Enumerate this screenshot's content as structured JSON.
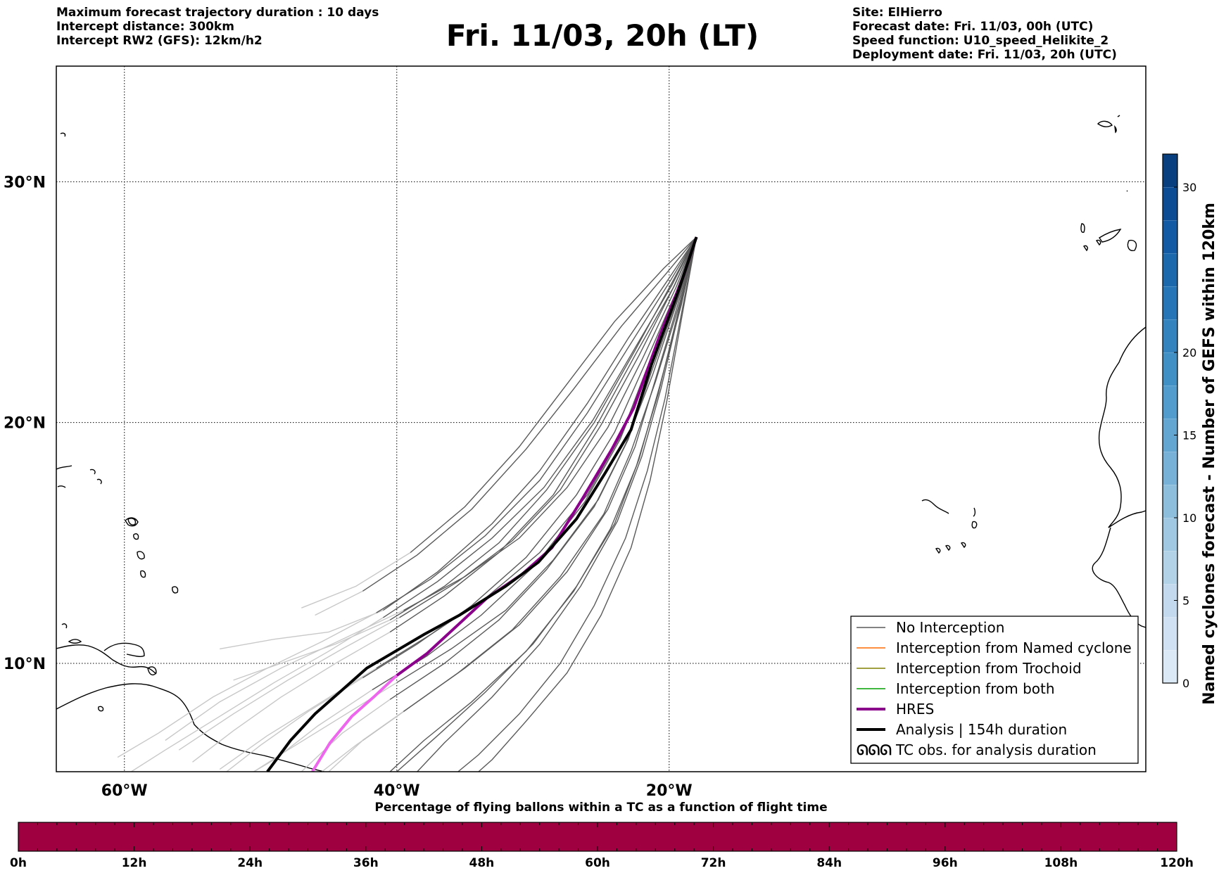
{
  "header": {
    "left": [
      "Maximum forecast trajectory duration : 10 days",
      "Intercept distance: 300km",
      "Intercept RW2 (GFS):  12km/h2"
    ],
    "title": "Fri. 11/03, 20h (LT)",
    "right": [
      "Site: ElHierro",
      "Forecast date: Fri. 11/03, 00h (UTC)",
      "Speed function: U10_speed_Helikite_2",
      "Deployment date: Fri. 11/03, 20h (UTC)"
    ]
  },
  "map": {
    "lon_range": [
      -65,
      15
    ],
    "lat_range": [
      5.5,
      34.8
    ],
    "lon_ticks": [
      {
        "value": -60,
        "label": "60°W"
      },
      {
        "value": -40,
        "label": "40°W"
      },
      {
        "value": -20,
        "label": "20°W"
      }
    ],
    "lat_ticks": [
      {
        "value": 30,
        "label": "30°N"
      },
      {
        "value": 20,
        "label": "20°N"
      },
      {
        "value": 10,
        "label": "10°N"
      }
    ],
    "grid": "dotted",
    "launch_site": {
      "name": "ElHierro",
      "lon": -18.0,
      "lat": 27.7
    },
    "colors": {
      "no_interception": "#5a5a5a",
      "late_segment": "#c8c8c8",
      "named_cyclone": "#ff6a00",
      "trochoid": "#808000",
      "both": "#00a000",
      "hres": "#8b008b",
      "hres_late": "#ee66ee",
      "analysis": "#000000"
    }
  },
  "trajectories": {
    "analysis": [
      [
        -18.0,
        27.7
      ],
      [
        -19.3,
        25.5
      ],
      [
        -21.3,
        22.4
      ],
      [
        -22.8,
        19.7
      ],
      [
        -24.7,
        17.9
      ],
      [
        -26.8,
        16.0
      ],
      [
        -29.6,
        14.2
      ],
      [
        -32.0,
        13.2
      ],
      [
        -35.4,
        12.0
      ],
      [
        -38.0,
        11.2
      ],
      [
        -40.1,
        10.5
      ],
      [
        -42.2,
        9.8
      ],
      [
        -44.0,
        8.9
      ],
      [
        -46.0,
        7.9
      ],
      [
        -47.8,
        6.8
      ],
      [
        -49.5,
        5.5
      ]
    ],
    "hres": [
      [
        -18.0,
        27.7
      ],
      [
        -19.0,
        26.0
      ],
      [
        -20.7,
        23.6
      ],
      [
        -22.6,
        20.6
      ],
      [
        -24.2,
        18.9
      ],
      [
        -26.3,
        16.9
      ],
      [
        -28.6,
        14.8
      ],
      [
        -30.8,
        13.7
      ],
      [
        -33.4,
        12.7
      ],
      [
        -35.5,
        11.6
      ],
      [
        -37.8,
        10.4
      ],
      [
        -40.0,
        9.5
      ],
      [
        -41.7,
        8.6
      ],
      [
        -43.3,
        7.8
      ],
      [
        -44.9,
        6.7
      ],
      [
        -46.2,
        5.5
      ]
    ],
    "ensemble": [
      [
        [
          -18.0,
          27.7
        ],
        [
          -20.0,
          26.0
        ],
        [
          -23.0,
          23.5
        ],
        [
          -26.0,
          20.8
        ],
        [
          -29.5,
          18.0
        ],
        [
          -33.0,
          15.8
        ],
        [
          -37.0,
          13.8
        ],
        [
          -41.0,
          12.2
        ],
        [
          -45.0,
          11.3
        ],
        [
          -49.0,
          11.0
        ],
        [
          -53.0,
          10.6
        ]
      ],
      [
        [
          -18.0,
          27.7
        ],
        [
          -19.8,
          25.8
        ],
        [
          -22.5,
          23.0
        ],
        [
          -25.5,
          20.0
        ],
        [
          -29.0,
          17.2
        ],
        [
          -32.5,
          15.0
        ],
        [
          -36.5,
          13.2
        ],
        [
          -40.5,
          11.8
        ],
        [
          -44.5,
          10.8
        ],
        [
          -48.0,
          10.1
        ],
        [
          -52.0,
          9.3
        ]
      ],
      [
        [
          -18.0,
          27.7
        ],
        [
          -19.5,
          25.6
        ],
        [
          -22.0,
          22.6
        ],
        [
          -24.5,
          19.8
        ],
        [
          -27.5,
          17.3
        ],
        [
          -31.0,
          15.2
        ],
        [
          -35.0,
          13.6
        ],
        [
          -39.5,
          12.2
        ],
        [
          -44.0,
          11.0
        ],
        [
          -48.5,
          9.8
        ],
        [
          -53.0,
          8.4
        ],
        [
          -57.0,
          6.8
        ]
      ],
      [
        [
          -18.0,
          27.7
        ],
        [
          -19.6,
          25.7
        ],
        [
          -22.2,
          22.8
        ],
        [
          -25.0,
          19.9
        ],
        [
          -28.0,
          17.2
        ],
        [
          -31.5,
          15.1
        ],
        [
          -35.5,
          13.4
        ],
        [
          -39.8,
          11.9
        ],
        [
          -44.0,
          10.6
        ],
        [
          -48.0,
          9.3
        ],
        [
          -52.0,
          7.9
        ],
        [
          -56.0,
          6.4
        ]
      ],
      [
        [
          -18.0,
          27.7
        ],
        [
          -19.4,
          25.5
        ],
        [
          -21.6,
          22.3
        ],
        [
          -23.5,
          19.5
        ],
        [
          -26.0,
          17.0
        ],
        [
          -29.5,
          14.6
        ],
        [
          -33.5,
          12.7
        ],
        [
          -37.5,
          11.2
        ],
        [
          -41.5,
          9.8
        ],
        [
          -45.5,
          8.4
        ],
        [
          -49.5,
          7.0
        ],
        [
          -53.0,
          5.6
        ]
      ],
      [
        [
          -18.0,
          27.7
        ],
        [
          -19.3,
          25.3
        ],
        [
          -21.3,
          22.1
        ],
        [
          -23.0,
          19.3
        ],
        [
          -25.2,
          16.8
        ],
        [
          -28.5,
          14.3
        ],
        [
          -32.0,
          12.2
        ],
        [
          -36.0,
          10.6
        ],
        [
          -40.0,
          9.2
        ],
        [
          -44.0,
          7.8
        ],
        [
          -48.0,
          6.4
        ],
        [
          -50.5,
          5.5
        ]
      ],
      [
        [
          -18.0,
          27.7
        ],
        [
          -19.2,
          25.2
        ],
        [
          -21.0,
          21.8
        ],
        [
          -22.5,
          19.0
        ],
        [
          -24.5,
          16.4
        ],
        [
          -27.5,
          13.8
        ],
        [
          -31.0,
          11.6
        ],
        [
          -35.0,
          9.8
        ],
        [
          -39.0,
          8.2
        ],
        [
          -42.5,
          6.8
        ],
        [
          -45.0,
          5.5
        ]
      ],
      [
        [
          -18.0,
          27.7
        ],
        [
          -19.1,
          25.0
        ],
        [
          -20.6,
          21.4
        ],
        [
          -22.0,
          18.6
        ],
        [
          -23.8,
          15.9
        ],
        [
          -26.5,
          13.2
        ],
        [
          -29.5,
          10.8
        ],
        [
          -33.0,
          8.6
        ],
        [
          -36.5,
          6.7
        ],
        [
          -38.5,
          5.5
        ]
      ],
      [
        [
          -18.0,
          27.7
        ],
        [
          -19.0,
          24.8
        ],
        [
          -20.3,
          21.0
        ],
        [
          -21.6,
          18.0
        ],
        [
          -23.2,
          15.2
        ],
        [
          -25.5,
          12.4
        ],
        [
          -28.0,
          10.0
        ],
        [
          -31.0,
          7.9
        ],
        [
          -34.0,
          6.2
        ],
        [
          -35.5,
          5.5
        ]
      ],
      [
        [
          -18.0,
          27.7
        ],
        [
          -19.2,
          24.9
        ],
        [
          -20.8,
          21.2
        ],
        [
          -22.4,
          18.2
        ],
        [
          -24.3,
          15.6
        ],
        [
          -27.0,
          13.0
        ],
        [
          -30.5,
          10.5
        ],
        [
          -34.5,
          8.4
        ],
        [
          -38.0,
          6.8
        ],
        [
          -40.5,
          5.5
        ]
      ],
      [
        [
          -18.0,
          27.7
        ],
        [
          -20.2,
          26.2
        ],
        [
          -23.5,
          24.0
        ],
        [
          -27.0,
          21.4
        ],
        [
          -30.5,
          18.9
        ],
        [
          -34.5,
          16.4
        ],
        [
          -38.5,
          14.5
        ],
        [
          -42.5,
          13.0
        ],
        [
          -46.0,
          12.0
        ]
      ],
      [
        [
          -18.0,
          27.7
        ],
        [
          -19.9,
          25.9
        ],
        [
          -22.8,
          23.3
        ],
        [
          -26.0,
          20.4
        ],
        [
          -29.5,
          17.6
        ],
        [
          -33.5,
          15.3
        ],
        [
          -37.5,
          13.5
        ],
        [
          -41.5,
          12.1
        ],
        [
          -45.5,
          10.9
        ],
        [
          -49.5,
          9.8
        ],
        [
          -53.5,
          8.6
        ],
        [
          -57.5,
          7.1
        ],
        [
          -60.5,
          6.1
        ]
      ],
      [
        [
          -18.0,
          27.7
        ],
        [
          -19.7,
          25.6
        ],
        [
          -22.4,
          22.9
        ],
        [
          -25.3,
          19.9
        ],
        [
          -28.5,
          17.0
        ],
        [
          -32.5,
          14.6
        ],
        [
          -36.5,
          12.8
        ],
        [
          -40.5,
          11.3
        ],
        [
          -44.5,
          10.0
        ],
        [
          -48.5,
          8.6
        ],
        [
          -52.0,
          7.2
        ],
        [
          -55.0,
          5.9
        ]
      ],
      [
        [
          -18.0,
          27.7
        ],
        [
          -19.5,
          25.4
        ],
        [
          -21.8,
          22.4
        ],
        [
          -24.0,
          19.6
        ],
        [
          -26.8,
          17.0
        ],
        [
          -30.5,
          14.4
        ],
        [
          -34.5,
          12.4
        ],
        [
          -38.5,
          10.8
        ],
        [
          -42.5,
          9.4
        ],
        [
          -46.5,
          8.0
        ],
        [
          -50.0,
          6.6
        ],
        [
          -52.5,
          5.5
        ]
      ],
      [
        [
          -18.0,
          27.7
        ],
        [
          -19.3,
          25.2
        ],
        [
          -21.2,
          22.0
        ],
        [
          -23.2,
          19.1
        ],
        [
          -25.5,
          16.5
        ],
        [
          -29.0,
          13.9
        ],
        [
          -32.5,
          11.8
        ],
        [
          -36.5,
          10.0
        ],
        [
          -40.5,
          8.5
        ],
        [
          -44.0,
          7.1
        ],
        [
          -47.0,
          5.5
        ]
      ],
      [
        [
          -18.0,
          27.7
        ],
        [
          -19.1,
          24.9
        ],
        [
          -20.7,
          21.5
        ],
        [
          -22.2,
          18.5
        ],
        [
          -24.0,
          15.8
        ],
        [
          -26.8,
          13.2
        ],
        [
          -30.0,
          10.8
        ],
        [
          -33.5,
          8.8
        ],
        [
          -37.0,
          7.0
        ],
        [
          -40.0,
          5.5
        ]
      ],
      [
        [
          -18.0,
          27.7
        ],
        [
          -20.4,
          26.4
        ],
        [
          -24.0,
          24.2
        ],
        [
          -27.5,
          21.6
        ],
        [
          -31.0,
          19.0
        ],
        [
          -35.0,
          16.5
        ],
        [
          -39.0,
          14.6
        ],
        [
          -43.0,
          13.2
        ],
        [
          -47.0,
          12.3
        ]
      ],
      [
        [
          -18.0,
          27.7
        ],
        [
          -19.8,
          25.7
        ],
        [
          -22.6,
          23.0
        ],
        [
          -25.6,
          20.1
        ],
        [
          -29.2,
          17.3
        ],
        [
          -33.0,
          15.2
        ],
        [
          -37.0,
          13.4
        ],
        [
          -41.0,
          11.9
        ],
        [
          -45.0,
          10.5
        ],
        [
          -49.0,
          9.2
        ],
        [
          -53.0,
          7.8
        ],
        [
          -57.0,
          6.4
        ],
        [
          -59.5,
          5.5
        ]
      ],
      [
        [
          -18.0,
          27.7
        ],
        [
          -19.4,
          25.3
        ],
        [
          -21.5,
          22.2
        ],
        [
          -23.6,
          19.3
        ],
        [
          -26.2,
          16.7
        ],
        [
          -29.8,
          14.1
        ],
        [
          -33.8,
          12.0
        ],
        [
          -37.8,
          10.3
        ],
        [
          -41.8,
          8.9
        ],
        [
          -45.8,
          7.4
        ],
        [
          -49.0,
          6.0
        ],
        [
          -50.5,
          5.5
        ]
      ],
      [
        [
          -18.0,
          27.7
        ],
        [
          -19.2,
          25.0
        ],
        [
          -21.0,
          21.7
        ],
        [
          -22.8,
          18.8
        ],
        [
          -24.8,
          16.2
        ],
        [
          -28.0,
          13.6
        ],
        [
          -31.5,
          11.4
        ],
        [
          -35.5,
          9.6
        ],
        [
          -39.5,
          8.0
        ],
        [
          -43.0,
          6.6
        ],
        [
          -45.5,
          5.5
        ]
      ],
      [
        [
          -18.0,
          27.7
        ],
        [
          -19.0,
          24.6
        ],
        [
          -20.2,
          20.8
        ],
        [
          -21.4,
          17.6
        ],
        [
          -22.8,
          14.8
        ],
        [
          -25.0,
          12.0
        ],
        [
          -27.5,
          9.6
        ],
        [
          -30.5,
          7.6
        ],
        [
          -33.0,
          6.0
        ],
        [
          -34.0,
          5.5
        ]
      ]
    ]
  },
  "legend": {
    "items": [
      {
        "label": "No Interception",
        "color": "#5a5a5a",
        "style": "thin"
      },
      {
        "label": "Interception from Named cyclone",
        "color": "#ff6a00",
        "style": "thin"
      },
      {
        "label": "Interception from Trochoid",
        "color": "#808000",
        "style": "thin"
      },
      {
        "label": "Interception from both",
        "color": "#00a000",
        "style": "thin"
      },
      {
        "label": "HRES",
        "color": "#8b008b",
        "style": "thick"
      },
      {
        "label": "Analysis | 154h duration",
        "color": "#000000",
        "style": "thick"
      },
      {
        "label": "TC obs. for analysis duration",
        "color": "#000000",
        "style": "symbol"
      }
    ],
    "symbol_glyph": "ᘏᘏᘏ"
  },
  "colorbar_right": {
    "label": "Named cyclones forecast - Number of GEFS within 120km",
    "range": [
      0,
      32
    ],
    "ticks": [
      0,
      5,
      10,
      15,
      20,
      30
    ],
    "colors": [
      "#dbe9f6",
      "#cfe1f2",
      "#c2d9ee",
      "#b2d2e8",
      "#a0c8e3",
      "#8dbedc",
      "#78b1d7",
      "#63a6d2",
      "#519ccc",
      "#4190c5",
      "#3383be",
      "#2675b6",
      "#1b68ad",
      "#125aa3",
      "#0b4c95",
      "#08407f"
    ]
  },
  "colorbar_bottom": {
    "title": "Percentage of flying ballons within a TC as a function of flight time",
    "color": "#9e0040",
    "ticks": [
      "0h",
      "12h",
      "24h",
      "36h",
      "48h",
      "60h",
      "72h",
      "84h",
      "96h",
      "108h",
      "120h"
    ],
    "minor_per_major": 6
  }
}
